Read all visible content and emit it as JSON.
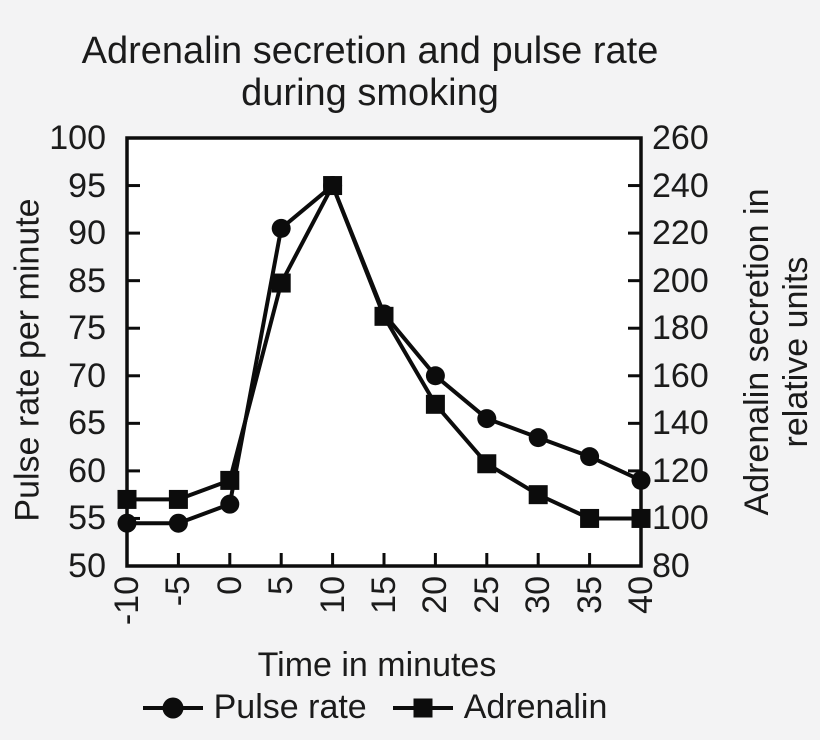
{
  "title": {
    "line1": "Adrenalin secretion and pulse rate",
    "line2": "during smoking"
  },
  "colors": {
    "background": "#f3f3f4",
    "plot_background": "#ffffff",
    "line": "#0c0c0c",
    "text": "#1b1b1b"
  },
  "chart_data": {
    "type": "line",
    "title": "Adrenalin secretion and pulse rate during smoking",
    "xlabel": "Time in minutes",
    "x_range": [
      -10,
      40
    ],
    "x": [
      -10,
      -5,
      0,
      5,
      10,
      15,
      20,
      25,
      30,
      35,
      40
    ],
    "x_ticks": [
      -10,
      -5,
      0,
      5,
      10,
      15,
      20,
      25,
      30,
      35,
      40
    ],
    "left_axis": {
      "label": "Pulse rate per minute",
      "ticks": [
        100,
        95,
        90,
        85,
        75,
        70,
        65,
        60,
        55,
        50
      ]
    },
    "right_axis": {
      "label_line1": "Adrenalin secretion in",
      "label_line2": "relative units",
      "ticks": [
        260,
        240,
        220,
        200,
        180,
        160,
        140,
        120,
        100,
        80
      ],
      "range": [
        80,
        260
      ]
    },
    "series": [
      {
        "name": "Pulse rate",
        "marker": "circle",
        "axis": "left",
        "values": [
          54.5,
          54.5,
          56.5,
          90.5,
          95,
          78,
          70,
          65.5,
          63.5,
          61.5,
          59
        ]
      },
      {
        "name": "Adrenalin",
        "marker": "square",
        "axis": "right",
        "values": [
          108,
          108,
          116,
          199,
          240,
          185,
          148,
          123,
          110,
          100,
          100
        ]
      }
    ],
    "legend_position": "bottom",
    "grid": false
  }
}
